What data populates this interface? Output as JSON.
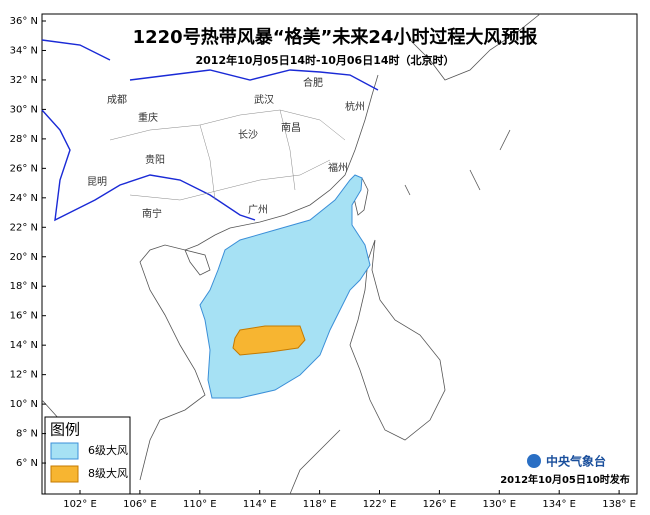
{
  "title": "1220号热带风暴“格美”未来24小时过程大风预报",
  "subtitle": "2012年10月05日14时-10月06日14时（北京时）",
  "lat_labels": [
    "36° N",
    "34° N",
    "32° N",
    "30° N",
    "28° N",
    "26° N",
    "24° N",
    "22° N",
    "20° N",
    "18° N",
    "16° N",
    "14° N",
    "12° N",
    "10° N",
    "8° N",
    "6° N"
  ],
  "lon_labels": [
    "102° E",
    "106° E",
    "110° E",
    "114° E",
    "118° E",
    "122° E",
    "126° E",
    "130° E",
    "134° E",
    "138° E"
  ],
  "cities": [
    "成都",
    "贵阳",
    "昆明",
    "南宁",
    "长沙",
    "南昌",
    "合肥",
    "杭州",
    "福州",
    "武汉",
    "重庆",
    "广州"
  ],
  "legend": {
    "title": "图例",
    "items": [
      "6级大风",
      "8级大风"
    ]
  },
  "footer": {
    "agency": "中央气象台",
    "date": "2012年10月05日10时发布"
  }
}
